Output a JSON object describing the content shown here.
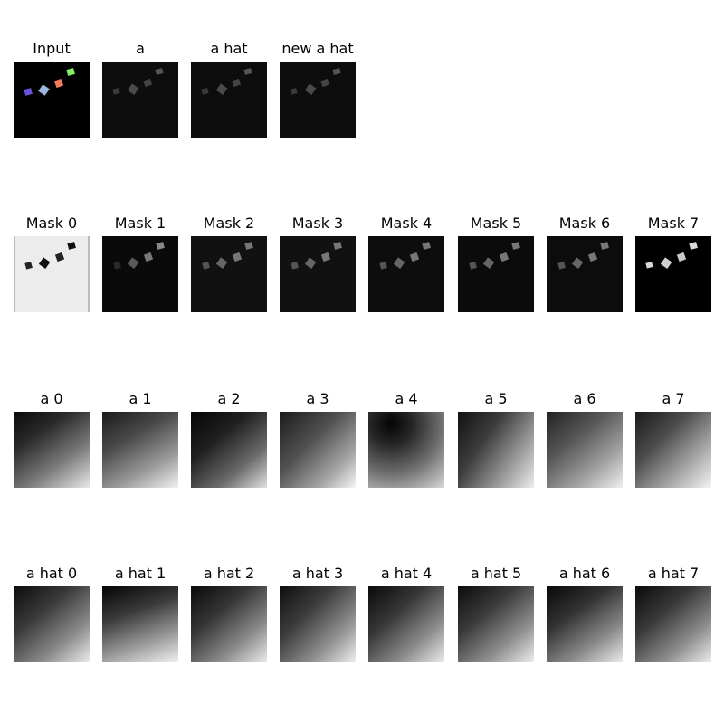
{
  "rows": [
    {
      "name": "outputs",
      "panels": [
        {
          "title": "Input",
          "kind": "input"
        },
        {
          "title": "a",
          "kind": "recon"
        },
        {
          "title": "a hat",
          "kind": "recon"
        },
        {
          "title": "new a hat",
          "kind": "recon"
        }
      ]
    },
    {
      "name": "masks",
      "panels": [
        {
          "title": "Mask 0",
          "kind": "mask-bg"
        },
        {
          "title": "Mask 1",
          "kind": "mask"
        },
        {
          "title": "Mask 2",
          "kind": "mask"
        },
        {
          "title": "Mask 3",
          "kind": "mask"
        },
        {
          "title": "Mask 4",
          "kind": "mask"
        },
        {
          "title": "Mask 5",
          "kind": "mask"
        },
        {
          "title": "Mask 6",
          "kind": "mask"
        },
        {
          "title": "Mask 7",
          "kind": "mask-bright"
        }
      ]
    },
    {
      "name": "a-maps",
      "panels": [
        {
          "title": "a 0",
          "kind": "gradient"
        },
        {
          "title": "a 1",
          "kind": "gradient"
        },
        {
          "title": "a 2",
          "kind": "gradient"
        },
        {
          "title": "a 3",
          "kind": "gradient"
        },
        {
          "title": "a 4",
          "kind": "gradient"
        },
        {
          "title": "a 5",
          "kind": "gradient"
        },
        {
          "title": "a 6",
          "kind": "gradient"
        },
        {
          "title": "a 7",
          "kind": "gradient"
        }
      ]
    },
    {
      "name": "a-hat-maps",
      "panels": [
        {
          "title": "a hat 0",
          "kind": "gradient"
        },
        {
          "title": "a hat 1",
          "kind": "gradient"
        },
        {
          "title": "a hat 2",
          "kind": "gradient"
        },
        {
          "title": "a hat 3",
          "kind": "gradient"
        },
        {
          "title": "a hat 4",
          "kind": "gradient"
        },
        {
          "title": "a hat 5",
          "kind": "gradient"
        },
        {
          "title": "a hat 6",
          "kind": "gradient"
        },
        {
          "title": "a hat 7",
          "kind": "gradient"
        }
      ]
    }
  ],
  "object_colors": [
    "#6a4fd8",
    "#9db8e0",
    "#f07a5c",
    "#7ff26a"
  ]
}
